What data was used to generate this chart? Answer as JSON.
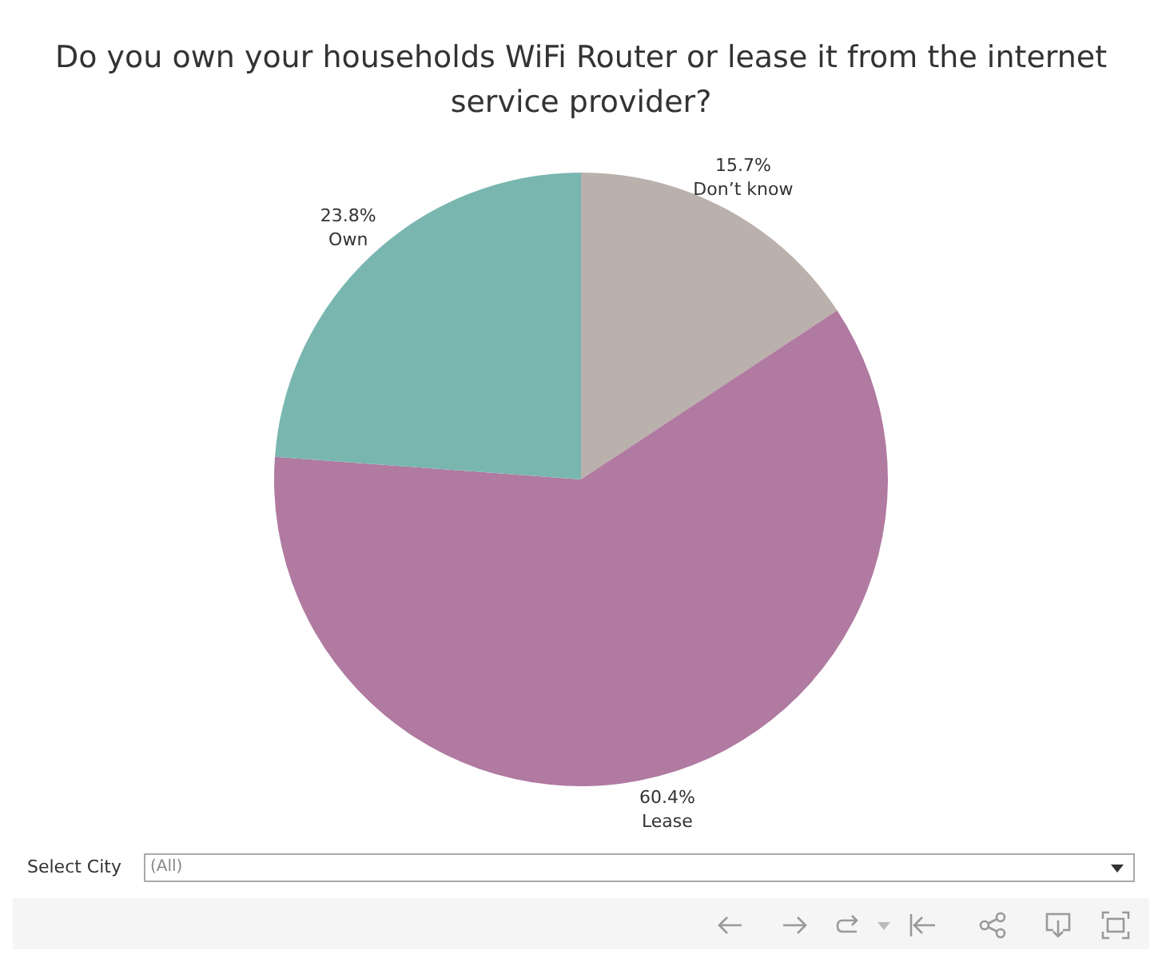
{
  "chart_data": {
    "type": "pie",
    "title": "Do you own your households WiFi Router or lease it from the internet service provider?",
    "categories": [
      "Don’t know",
      "Lease",
      "Own"
    ],
    "values": [
      15.7,
      60.4,
      23.8
    ],
    "value_labels": [
      "15.7%",
      "60.4%",
      "23.8%"
    ],
    "colors": [
      "#bab0ac",
      "#b07aa1",
      "#79b6b0"
    ],
    "legend": false,
    "annotations": [
      "Select City",
      "(All)"
    ]
  }
}
